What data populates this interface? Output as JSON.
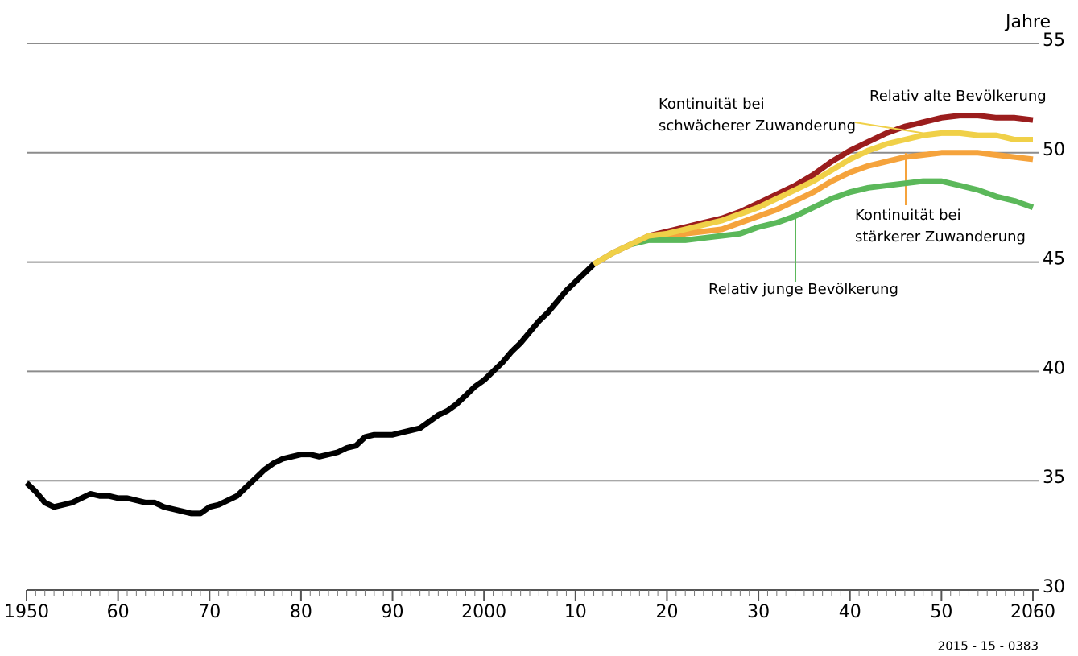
{
  "chart_data": {
    "type": "line",
    "y_unit": "Jahre",
    "source_code": "2015 - 15 - 0383",
    "xlim": [
      1950,
      2060
    ],
    "xticks": [
      {
        "value": 1950,
        "label": "1950"
      },
      {
        "value": 1960,
        "label": "60"
      },
      {
        "value": 1970,
        "label": "70"
      },
      {
        "value": 1980,
        "label": "80"
      },
      {
        "value": 1990,
        "label": "90"
      },
      {
        "value": 2000,
        "label": "2000"
      },
      {
        "value": 2010,
        "label": "10"
      },
      {
        "value": 2020,
        "label": "20"
      },
      {
        "value": 2030,
        "label": "30"
      },
      {
        "value": 2040,
        "label": "40"
      },
      {
        "value": 2050,
        "label": "50"
      },
      {
        "value": 2060,
        "label": "2060"
      }
    ],
    "minor_tick_interval": 1,
    "ylim": [
      30,
      55
    ],
    "yticks": [
      30,
      35,
      40,
      45,
      50,
      55
    ],
    "grid": true,
    "series": [
      {
        "color": "#000000",
        "x": [
          1950,
          1951,
          1952,
          1953,
          1954,
          1955,
          1956,
          1957,
          1958,
          1959,
          1960,
          1961,
          1962,
          1963,
          1964,
          1965,
          1966,
          1967,
          1968,
          1969,
          1970,
          1971,
          1972,
          1973,
          1974,
          1975,
          1976,
          1977,
          1978,
          1979,
          1980,
          1981,
          1982,
          1983,
          1984,
          1985,
          1986,
          1987,
          1988,
          1989,
          1990,
          1991,
          1992,
          1993,
          1994,
          1995,
          1996,
          1997,
          1998,
          1999,
          2000,
          2001,
          2002,
          2003,
          2004,
          2005,
          2006,
          2007,
          2008,
          2009,
          2010,
          2011,
          2012
        ],
        "values": [
          34.9,
          34.5,
          34.0,
          33.8,
          33.9,
          34.0,
          34.2,
          34.4,
          34.3,
          34.3,
          34.2,
          34.2,
          34.1,
          34.0,
          34.0,
          33.8,
          33.7,
          33.6,
          33.5,
          33.5,
          33.8,
          33.9,
          34.1,
          34.3,
          34.7,
          35.1,
          35.5,
          35.8,
          36.0,
          36.1,
          36.2,
          36.2,
          36.1,
          36.2,
          36.3,
          36.5,
          36.6,
          37.0,
          37.1,
          37.1,
          37.1,
          37.2,
          37.3,
          37.4,
          37.7,
          38.0,
          38.2,
          38.5,
          38.9,
          39.3,
          39.6,
          40.0,
          40.4,
          40.9,
          41.3,
          41.8,
          42.3,
          42.7,
          43.2,
          43.7,
          44.1,
          44.5,
          44.9
        ]
      },
      {
        "color": "#f5a33c",
        "label": [
          "Kontinuität bei",
          "stärkerer Zuwanderung"
        ],
        "x": [
          2012,
          2014,
          2016,
          2018,
          2020,
          2022,
          2024,
          2026,
          2028,
          2030,
          2032,
          2034,
          2036,
          2038,
          2040,
          2042,
          2044,
          2046,
          2048,
          2050,
          2052,
          2054,
          2056,
          2058,
          2060
        ],
        "values": [
          44.9,
          45.4,
          45.8,
          46.1,
          46.1,
          46.3,
          46.4,
          46.5,
          46.8,
          47.1,
          47.4,
          47.8,
          48.2,
          48.7,
          49.1,
          49.4,
          49.6,
          49.8,
          49.9,
          50.0,
          50.0,
          50.0,
          49.9,
          49.8,
          49.7
        ]
      },
      {
        "color": "#5bb85a",
        "label": [
          "Relativ junge Bevölkerung"
        ],
        "x": [
          2012,
          2014,
          2016,
          2018,
          2020,
          2022,
          2024,
          2026,
          2028,
          2030,
          2032,
          2034,
          2036,
          2038,
          2040,
          2042,
          2044,
          2046,
          2048,
          2050,
          2052,
          2054,
          2056,
          2058,
          2060
        ],
        "values": [
          44.9,
          45.4,
          45.8,
          46.0,
          46.0,
          46.0,
          46.1,
          46.2,
          46.3,
          46.6,
          46.8,
          47.1,
          47.5,
          47.9,
          48.2,
          48.4,
          48.5,
          48.6,
          48.7,
          48.7,
          48.5,
          48.3,
          48.0,
          47.8,
          47.5
        ]
      },
      {
        "color": "#9b1d1d",
        "label": [
          "Relativ alte Bevölkerung"
        ],
        "x": [
          2012,
          2014,
          2016,
          2018,
          2020,
          2022,
          2024,
          2026,
          2028,
          2030,
          2032,
          2034,
          2036,
          2038,
          2040,
          2042,
          2044,
          2046,
          2048,
          2050,
          2052,
          2054,
          2056,
          2058,
          2060
        ],
        "values": [
          44.9,
          45.4,
          45.8,
          46.2,
          46.4,
          46.6,
          46.8,
          47.0,
          47.3,
          47.7,
          48.1,
          48.5,
          49.0,
          49.6,
          50.1,
          50.5,
          50.9,
          51.2,
          51.4,
          51.6,
          51.7,
          51.7,
          51.6,
          51.6,
          51.5
        ]
      },
      {
        "color": "#f0d048",
        "label": [
          "Kontinuität bei",
          "schwächerer Zuwanderung"
        ],
        "x": [
          2012,
          2014,
          2016,
          2018,
          2020,
          2022,
          2024,
          2026,
          2028,
          2030,
          2032,
          2034,
          2036,
          2038,
          2040,
          2042,
          2044,
          2046,
          2048,
          2050,
          2052,
          2054,
          2056,
          2058,
          2060
        ],
        "values": [
          44.9,
          45.4,
          45.8,
          46.2,
          46.3,
          46.5,
          46.7,
          46.9,
          47.2,
          47.5,
          47.9,
          48.3,
          48.7,
          49.2,
          49.7,
          50.1,
          50.4,
          50.6,
          50.8,
          50.9,
          50.9,
          50.8,
          50.8,
          50.6,
          50.6
        ]
      }
    ]
  }
}
